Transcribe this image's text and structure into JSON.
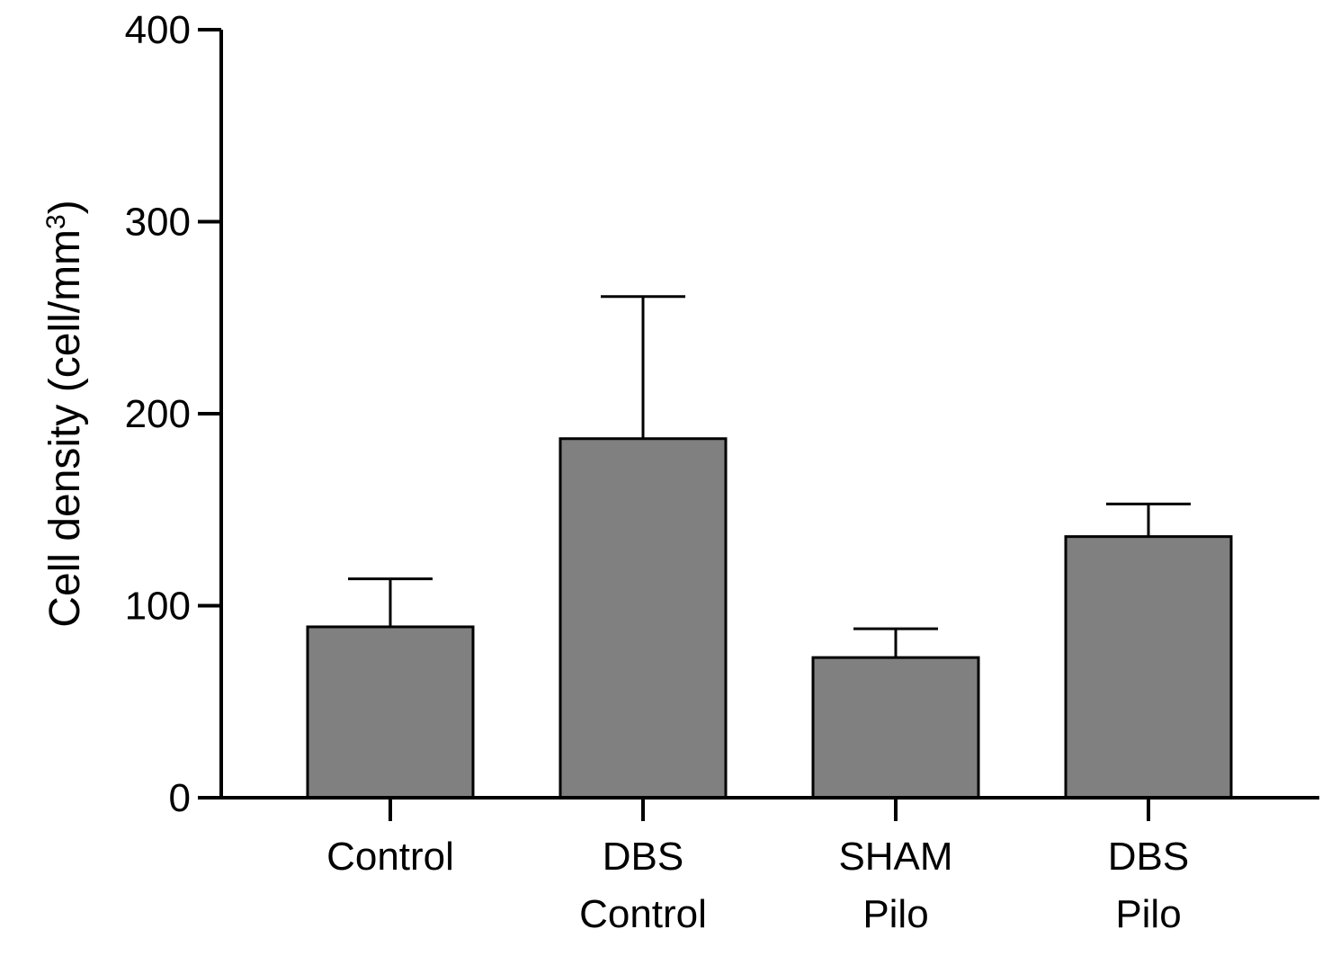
{
  "chart_data": {
    "type": "bar",
    "title": "",
    "xlabel": "",
    "ylabel": "Cell density (cell/mm",
    "ylabel_superscript": "3",
    "ylabel_suffix": ")",
    "ylim": [
      0,
      400
    ],
    "yticks": [
      0,
      100,
      200,
      300,
      400
    ],
    "categories": [
      [
        "Control"
      ],
      [
        "DBS",
        "Control"
      ],
      [
        "SHAM",
        "Pilo"
      ],
      [
        "DBS",
        "Pilo"
      ]
    ],
    "values": [
      89,
      187,
      73,
      136
    ],
    "error_upper": [
      114,
      261,
      88,
      153
    ],
    "bar_color": "#808080",
    "grid": false,
    "legend": "none"
  }
}
